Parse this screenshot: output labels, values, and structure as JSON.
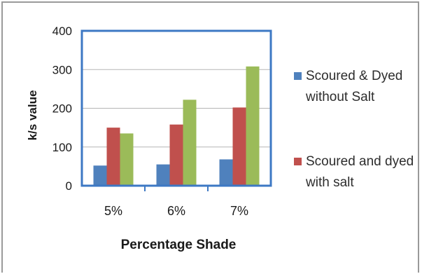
{
  "chart_data": {
    "type": "bar",
    "title": "",
    "xlabel": "Percentage Shade",
    "ylabel": "k/s value",
    "categories": [
      "5%",
      "6%",
      "7%"
    ],
    "ylim": [
      0,
      400
    ],
    "yticks": [
      0,
      100,
      200,
      300,
      400
    ],
    "grid": true,
    "legend_position": "right",
    "series": [
      {
        "name": "Scoured & Dyed without Salt",
        "color": "#4f81bd",
        "values": [
          52,
          55,
          68
        ]
      },
      {
        "name": "Scoured and dyed with salt",
        "color": "#c0504d",
        "values": [
          150,
          158,
          202
        ]
      },
      {
        "name": "",
        "color": "#9bbb59",
        "values": [
          135,
          222,
          308
        ]
      }
    ]
  }
}
